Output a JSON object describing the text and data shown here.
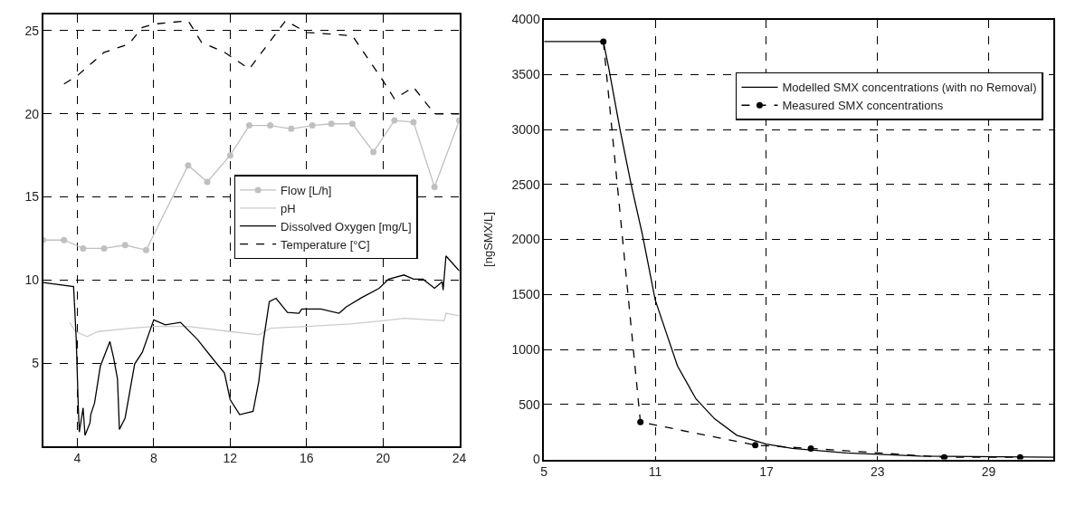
{
  "chart_data": [
    {
      "type": "line",
      "xlim": [
        2.2,
        24
      ],
      "xticks": [
        4,
        8,
        12,
        16,
        20,
        24
      ],
      "ylim": [
        0,
        26
      ],
      "yticks": [
        5,
        10,
        15,
        20,
        25
      ],
      "grid": true,
      "legend": "center right",
      "series": [
        {
          "name": "Flow [L/h]",
          "color": "#c0c0c0",
          "marker": "circle",
          "line_style": "solid",
          "x": [
            2.2,
            3.3,
            4.3,
            5.4,
            6.5,
            7.6,
            9.8,
            10.8,
            12,
            13,
            14.1,
            15.2,
            16.3,
            17.3,
            18.4,
            19.5,
            20.6,
            21.6,
            22.7,
            24
          ],
          "values": [
            12.4,
            12.4,
            11.9,
            11.9,
            12.1,
            11.8,
            16.9,
            15.9,
            17.5,
            19.3,
            19.3,
            19.1,
            19.3,
            19.4,
            19.4,
            17.7,
            19.6,
            19.5,
            15.6,
            19.6
          ]
        },
        {
          "name": "pH",
          "color": "#cccccc",
          "marker": "none",
          "line_style": "solid",
          "x": [
            3.6,
            3.9,
            4.5,
            5.1,
            6.8,
            8,
            9.8,
            12,
            13.5,
            14.1,
            16,
            18.3,
            20,
            21.1,
            23.2,
            23.3,
            24
          ],
          "values": [
            7.45,
            6.9,
            6.6,
            6.9,
            7.1,
            7.2,
            7.2,
            6.9,
            6.7,
            7.1,
            7.2,
            7.35,
            7.55,
            7.7,
            7.55,
            8,
            7.85
          ]
        },
        {
          "name": "Dissolved Oxygen [mg/L]",
          "color": "#000000",
          "marker": "none",
          "line_style": "solid",
          "x": [
            2.2,
            3.8,
            3.86,
            3.94,
            4.05,
            4.1,
            4.3,
            4.4,
            4.66,
            4.7,
            4.9,
            5.2,
            5.7,
            5.9,
            6.1,
            6.2,
            6.5,
            7,
            7.4,
            8,
            8.6,
            9.4,
            10.3,
            11.2,
            11.7,
            12,
            12.5,
            13.2,
            13.5,
            13.75,
            14.05,
            14.4,
            15,
            15.6,
            15.75,
            16.75,
            17.7,
            18.1,
            18.9,
            19.8,
            20.3,
            21.1,
            21.6,
            22.1,
            22.7,
            23.1,
            23.15,
            23.3,
            24
          ],
          "values": [
            9.85,
            9.6,
            8.3,
            6.4,
            2.3,
            0.85,
            2.3,
            0.65,
            1.4,
            1.9,
            2.6,
            4.8,
            6.3,
            5.3,
            4.05,
            1.0,
            1.7,
            4.95,
            5.65,
            7.6,
            7.3,
            7.45,
            6.4,
            5.1,
            4.4,
            2.8,
            1.9,
            2.1,
            3.9,
            6.4,
            8.7,
            8.9,
            8.05,
            8.0,
            8.25,
            8.25,
            8.0,
            8.4,
            8.95,
            9.5,
            10.05,
            10.3,
            10.05,
            10.05,
            9.5,
            9.9,
            9.4,
            11.45,
            10.55
          ]
        },
        {
          "name": "Temperature [°C]",
          "color": "#000000",
          "marker": "none",
          "line_style": "dashed",
          "x": [
            3.3,
            4,
            5.4,
            6.7,
            7.4,
            8,
            9.8,
            10.5,
            11.7,
            13,
            14.9,
            16,
            18.4,
            20,
            20.6,
            21.6,
            22.7,
            24
          ],
          "values": [
            21.8,
            22.3,
            23.7,
            24.2,
            25.2,
            25.4,
            25.6,
            24.3,
            23.7,
            22.7,
            25.6,
            24.9,
            24.7,
            22,
            20.9,
            21.6,
            20,
            20
          ]
        }
      ]
    },
    {
      "type": "line",
      "ylabel": "[ngSMX/L]",
      "xlim": [
        5,
        32.5
      ],
      "xticks": [
        5,
        11,
        17,
        23,
        29
      ],
      "ylim": [
        0,
        4000
      ],
      "yticks": [
        0,
        500,
        1000,
        1500,
        2000,
        2500,
        3000,
        3500,
        4000
      ],
      "grid": true,
      "legend": "top right",
      "series": [
        {
          "name": "Modelled SMX concentrations (with no Removal)",
          "color": "#000000",
          "marker": "none",
          "line_style": "solid",
          "x": [
            5,
            8.2,
            8.5,
            9.1,
            9.7,
            10.3,
            11,
            11.6,
            12.2,
            13.2,
            14.2,
            15.4,
            17,
            18.4,
            21.3,
            25.3,
            32.5
          ],
          "values": [
            3800,
            3800,
            3550,
            3000,
            2500,
            2050,
            1450,
            1150,
            850,
            550,
            370,
            220,
            140,
            100,
            60,
            30,
            20
          ]
        },
        {
          "name": "Measured SMX concentrations",
          "color": "#000000",
          "marker": "circle",
          "line_style": "dashed",
          "x": [
            8.2,
            10.2,
            16.4,
            19.4,
            26.6,
            30.7
          ],
          "values": [
            3800,
            340,
            130,
            100,
            20,
            20
          ]
        }
      ]
    }
  ]
}
